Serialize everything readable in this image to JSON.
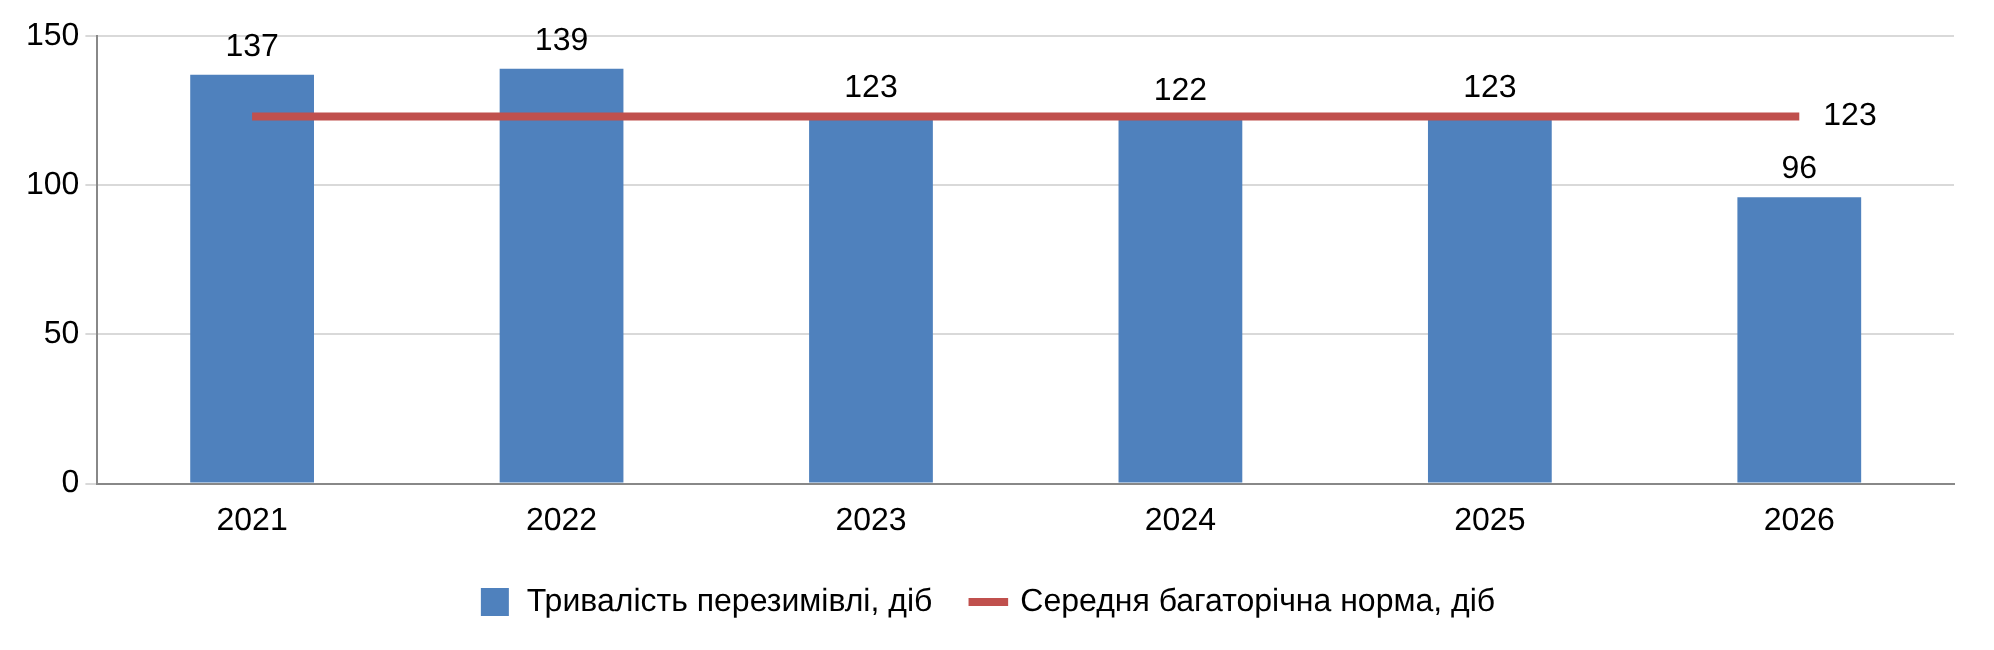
{
  "chart_data": {
    "type": "bar",
    "categories": [
      "2021",
      "2022",
      "2023",
      "2024",
      "2025",
      "2026"
    ],
    "series": [
      {
        "name": "Тривалість перезимівлі, діб",
        "color": "#4f81bd",
        "values": [
          137,
          139,
          123,
          122,
          123,
          96
        ],
        "value_labels": [
          "137",
          "139",
          "123",
          "122",
          "123",
          "96"
        ]
      },
      {
        "name": "Середня багаторічна норма, діб",
        "type": "line",
        "color": "#c0504d",
        "values": [
          123,
          123,
          123,
          123,
          123,
          123
        ],
        "value_labels": [
          null,
          null,
          null,
          null,
          null,
          "123"
        ],
        "marker": "none"
      }
    ],
    "ylim": [
      0,
      150
    ],
    "yticks": [
      0,
      50,
      100,
      150
    ],
    "grid": "y",
    "legend": "bottom"
  }
}
